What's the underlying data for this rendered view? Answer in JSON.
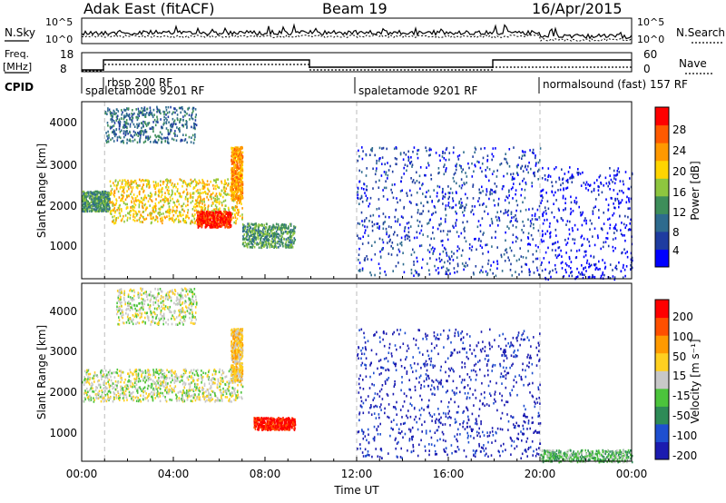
{
  "header": {
    "station": "Adak East (fitACF)",
    "beam": "Beam 19",
    "date": "16/Apr/2015"
  },
  "panels": {
    "nsky_label": "N.Sky",
    "nsky_ticks": [
      "10^5",
      "10^0"
    ],
    "nsearch_label": "N.Search",
    "nsearch_ticks": [
      "10^5",
      "10^0"
    ],
    "freq_label_1": "Freq.",
    "freq_label_2": "[MHz]",
    "freq_ticks": [
      "18",
      "8"
    ],
    "nave_label": "Nave",
    "nave_ticks": [
      "60",
      "0"
    ],
    "cpid_label": "CPID",
    "modes": [
      {
        "label": "rbsp 200 RF",
        "start": 1.0
      },
      {
        "label": "spaletamode 9201 RF",
        "start": 0.0
      },
      {
        "label": "spaletamode 9201 RF",
        "start": 12.0
      },
      {
        "label": "normalsound (fast) 157 RF",
        "start": 20.0
      }
    ]
  },
  "chart_data": [
    {
      "type": "heatmap",
      "name": "power",
      "ylabel": "Slant Range [km]",
      "yticks": [
        1000,
        2000,
        3000,
        4000
      ],
      "ylim": [
        200,
        4600
      ],
      "xlim": [
        0,
        24
      ],
      "colorbar": {
        "label": "Power [dB]",
        "ticks": [
          "28",
          "24",
          "20",
          "16",
          "12",
          "8",
          "4"
        ],
        "colors": [
          "#0000ff",
          "#1e3ca0",
          "#2e6b8e",
          "#3e8e5a",
          "#8ec63f",
          "#ffd500",
          "#ff9900",
          "#ff5a00",
          "#ff0000"
        ]
      },
      "data_regions": [
        {
          "x": [
            0.0,
            1.2
          ],
          "y": [
            1900,
            2400
          ],
          "level": 3
        },
        {
          "x": [
            1.2,
            7.0
          ],
          "y": [
            1600,
            2700
          ],
          "level": 5
        },
        {
          "x": [
            5.0,
            6.5
          ],
          "y": [
            1500,
            1900
          ],
          "level": 8
        },
        {
          "x": [
            1.0,
            5.0
          ],
          "y": [
            3600,
            4500
          ],
          "level": 2
        },
        {
          "x": [
            6.5,
            7.0
          ],
          "y": [
            2200,
            3500
          ],
          "level": 6
        },
        {
          "x": [
            7.0,
            9.3
          ],
          "y": [
            1000,
            1600
          ],
          "level": 3
        },
        {
          "x": [
            12.0,
            20.0
          ],
          "y": [
            300,
            3500
          ],
          "level": 1
        },
        {
          "x": [
            20.0,
            24.0
          ],
          "y": [
            200,
            3000
          ],
          "level": 0
        }
      ]
    },
    {
      "type": "heatmap",
      "name": "velocity",
      "ylabel": "Slant Range [km]",
      "xlabel": "Time UT",
      "xticks": [
        "00:00",
        "04:00",
        "08:00",
        "12:00",
        "16:00",
        "20:00",
        "00:00"
      ],
      "yticks": [
        1000,
        2000,
        3000,
        4000
      ],
      "ylim": [
        200,
        4600
      ],
      "xlim": [
        0,
        24
      ],
      "colorbar": {
        "label": "Velocity [m s⁻¹]",
        "ticks": [
          "200",
          "100",
          "50",
          "15",
          "-15",
          "-50",
          "-100",
          "-200"
        ],
        "colors": [
          "#1b1bb0",
          "#1e4fd0",
          "#2e8b57",
          "#4cc43c",
          "#c8c8c8",
          "#ffd020",
          "#ff9a00",
          "#ff5000",
          "#ff0000"
        ]
      },
      "data_regions": [
        {
          "x": [
            0.0,
            7.0
          ],
          "y": [
            1700,
            2500
          ],
          "level": 4
        },
        {
          "x": [
            1.5,
            5.0
          ],
          "y": [
            3600,
            4500
          ],
          "level": 4
        },
        {
          "x": [
            6.5,
            7.0
          ],
          "y": [
            2200,
            3500
          ],
          "level": 5
        },
        {
          "x": [
            7.5,
            9.3
          ],
          "y": [
            1000,
            1300
          ],
          "level": 8
        },
        {
          "x": [
            12.0,
            20.0
          ],
          "y": [
            300,
            3500
          ],
          "level": 0
        },
        {
          "x": [
            20.0,
            24.0
          ],
          "y": [
            200,
            500
          ],
          "level": 3
        }
      ]
    }
  ]
}
